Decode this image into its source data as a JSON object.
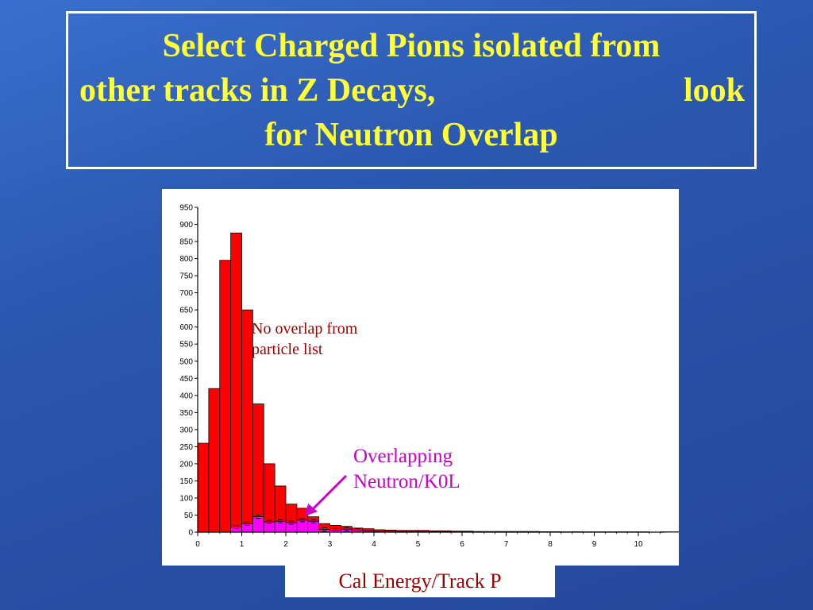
{
  "title": {
    "line1": "Select Charged Pions isolated from",
    "line2_left": "other tracks in Z Decays,",
    "line2_right": "look",
    "line3": "for Neutron Overlap",
    "color": "#ffff33"
  },
  "annotations": {
    "no_overlap_line1": "No overlap from",
    "no_overlap_line2": "particle list",
    "overlap_line1": "Overlapping",
    "overlap_line2": "Neutron/K0L"
  },
  "chart_data": {
    "type": "bar",
    "xlabel": "Cal Energy/Track P",
    "ylabel": "",
    "xlim": [
      0,
      10.6
    ],
    "ylim": [
      0,
      950
    ],
    "bin_width": 0.25,
    "x_ticks": [
      0,
      1,
      2,
      3,
      4,
      5,
      6,
      7,
      8,
      9,
      10
    ],
    "y_ticks": [
      0,
      50,
      100,
      150,
      200,
      250,
      300,
      350,
      400,
      450,
      500,
      550,
      600,
      650,
      700,
      750,
      800,
      850,
      900,
      950
    ],
    "grid": false,
    "series": [
      {
        "color": "#ff0000",
        "values": [
          260,
          420,
          795,
          875,
          650,
          375,
          200,
          135,
          82,
          70,
          45,
          25,
          20,
          17,
          12,
          10,
          7,
          6,
          5,
          5,
          5,
          4,
          4,
          3,
          3,
          2,
          2,
          2,
          2,
          2,
          2,
          1,
          1,
          1,
          1,
          1,
          1,
          1,
          1,
          1,
          1,
          0,
          1,
          1,
          1,
          1,
          1,
          0
        ]
      },
      {
        "color": "#ff00ff",
        "values": [
          0,
          0,
          0,
          15,
          25,
          45,
          30,
          32,
          28,
          35,
          32,
          8,
          6,
          9,
          6,
          4,
          2,
          2,
          2,
          2,
          2,
          1,
          1,
          1,
          1,
          1,
          1,
          1,
          1,
          1,
          1,
          1,
          1,
          0,
          1,
          0,
          0,
          0,
          0,
          0,
          0,
          0,
          0,
          0,
          0,
          0,
          0,
          0
        ]
      }
    ]
  }
}
